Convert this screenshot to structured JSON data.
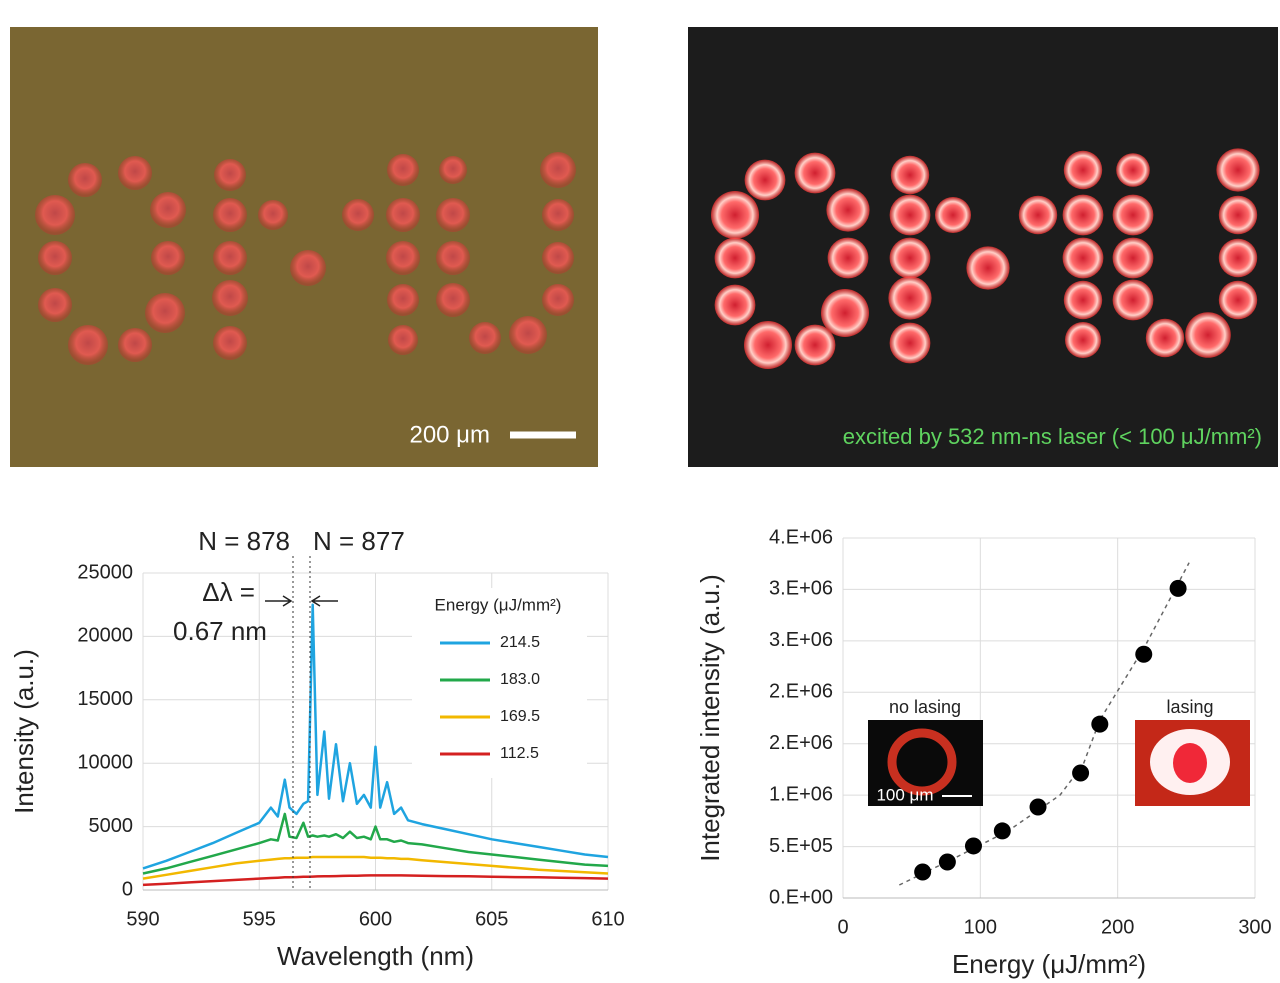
{
  "photos": {
    "scale_label": "200 μm",
    "caption": "excited by 532 nm-ns laser (< 100 μJ/mm²)"
  },
  "chart_data": [
    {
      "type": "line",
      "xlabel": "Wavelength (nm)",
      "ylabel": "Intensity (a.u.)",
      "legend_title": "Energy (μJ/mm²)",
      "annotations": [
        "N = 878",
        "N = 877",
        "Δλ =",
        "0.67 nm"
      ],
      "xlim": [
        590,
        610
      ],
      "xticks": [
        590,
        595,
        600,
        605,
        610
      ],
      "ylim": [
        0,
        25000
      ],
      "yticks": [
        0,
        5000,
        10000,
        15000,
        20000,
        25000
      ],
      "grid": true,
      "x": [
        590,
        591,
        592,
        593,
        594,
        595,
        595.5,
        595.8,
        596.1,
        596.3,
        596.6,
        596.9,
        597.1,
        597.3,
        597.5,
        597.8,
        598.0,
        598.3,
        598.6,
        598.9,
        599.2,
        599.5,
        599.8,
        600.0,
        600.2,
        600.5,
        600.8,
        601.1,
        601.4,
        602,
        603,
        604,
        605,
        606,
        607,
        608,
        609,
        610
      ],
      "series": [
        {
          "name": "214.5",
          "color": "#1fa4e0",
          "values": [
            1700,
            2300,
            3000,
            3700,
            4500,
            5300,
            6500,
            5800,
            8700,
            6500,
            6000,
            6800,
            7000,
            22500,
            7500,
            12500,
            7200,
            11500,
            7000,
            10000,
            6800,
            7500,
            6500,
            11300,
            6500,
            8500,
            6000,
            6500,
            5500,
            5200,
            4800,
            4400,
            4000,
            3700,
            3400,
            3100,
            2800,
            2600
          ]
        },
        {
          "name": "183.0",
          "color": "#22a84a",
          "values": [
            1300,
            1700,
            2200,
            2700,
            3200,
            3700,
            4000,
            3900,
            6000,
            4200,
            4100,
            5300,
            4200,
            4300,
            4200,
            4300,
            4200,
            4400,
            4100,
            4600,
            4100,
            4200,
            4000,
            5000,
            4000,
            4000,
            3800,
            3900,
            3700,
            3600,
            3300,
            3000,
            2800,
            2600,
            2400,
            2200,
            2000,
            1900
          ]
        },
        {
          "name": "169.5",
          "color": "#f2b800",
          "values": [
            900,
            1200,
            1500,
            1800,
            2100,
            2300,
            2400,
            2450,
            2500,
            2500,
            2550,
            2550,
            2550,
            2600,
            2600,
            2600,
            2600,
            2600,
            2600,
            2600,
            2600,
            2600,
            2550,
            2550,
            2550,
            2500,
            2500,
            2450,
            2450,
            2350,
            2200,
            2050,
            1900,
            1750,
            1600,
            1500,
            1400,
            1300
          ]
        },
        {
          "name": "112.5",
          "color": "#d42020",
          "values": [
            400,
            500,
            600,
            700,
            800,
            900,
            950,
            970,
            1000,
            1000,
            1020,
            1040,
            1050,
            1060,
            1070,
            1080,
            1090,
            1100,
            1110,
            1120,
            1130,
            1140,
            1150,
            1150,
            1150,
            1150,
            1150,
            1150,
            1140,
            1130,
            1100,
            1080,
            1050,
            1020,
            1000,
            970,
            940,
            900
          ]
        }
      ]
    },
    {
      "type": "scatter",
      "xlabel": "Energy (μJ/mm²)",
      "ylabel": "Integrated intensity (a.u.)",
      "insets": [
        "no lasing",
        "lasing",
        "100 μm"
      ],
      "color": "#000000",
      "xlim": [
        0,
        300
      ],
      "xticks": [
        0,
        100,
        200,
        300
      ],
      "ylim": [
        0,
        3500000
      ],
      "yticks": [
        {
          "value": 0,
          "label": "0.E+00"
        },
        {
          "value": 500000,
          "label": "5.E+05"
        },
        {
          "value": 1000000,
          "label": "1.E+06"
        },
        {
          "value": 1500000,
          "label": "2.E+06"
        },
        {
          "value": 2000000,
          "label": "2.E+06"
        },
        {
          "value": 2500000,
          "label": "3.E+06"
        },
        {
          "value": 3000000,
          "label": "3.E+06"
        },
        {
          "value": 3500000,
          "label": "4.E+06"
        }
      ],
      "grid": true,
      "x": [
        58,
        76,
        95,
        116,
        142,
        173,
        187,
        219,
        244
      ],
      "values": [
        253000,
        350000,
        506000,
        652000,
        885000,
        1215000,
        1690000,
        2370000,
        3010000
      ],
      "trend": {
        "x": [
          41,
          80,
          120,
          158,
          175,
          187,
          220,
          252
        ],
        "y": [
          126000,
          380000,
          650000,
          1000000,
          1300000,
          1730000,
          2450000,
          3260000
        ]
      }
    }
  ]
}
